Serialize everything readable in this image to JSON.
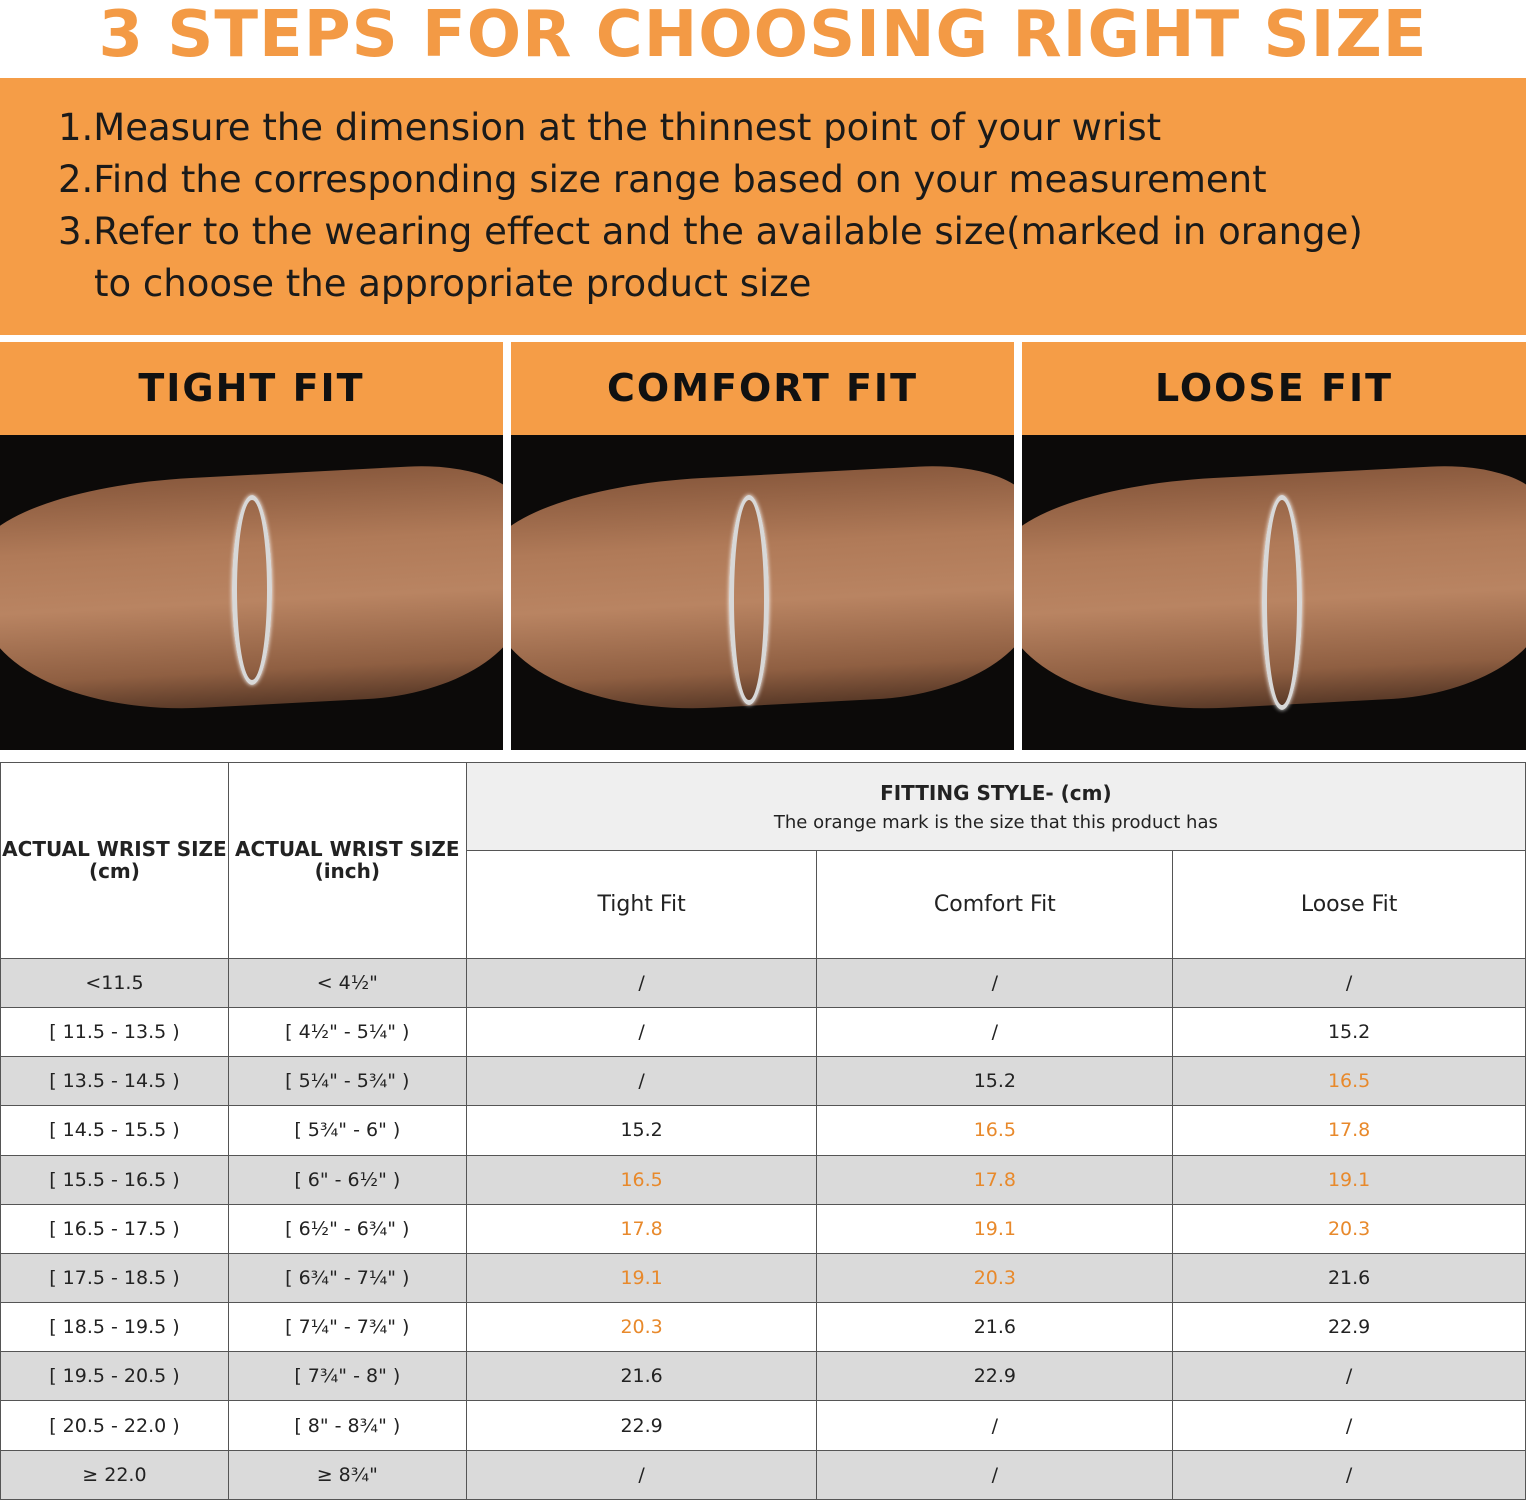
{
  "title": "3 STEPS FOR CHOOSING RIGHT SIZE",
  "steps": [
    "1.Measure the dimension at the thinnest point of your wrist",
    "2.Find the corresponding size range based on your measurement",
    "3.Refer to the wearing effect and the available size(marked in orange)",
    "to choose the appropriate product size"
  ],
  "fits": [
    "TIGHT FIT",
    "COMFORT FIT",
    "LOOSE FIT"
  ],
  "colors": {
    "orange": "#F59D47",
    "highlight": "#E8892B"
  },
  "table": {
    "col_cm": [
      "ACTUAL WRIST SIZE",
      "(cm)"
    ],
    "col_inch": [
      "ACTUAL WRIST SIZE",
      "(inch)"
    ],
    "fitting_title": "FITTING STYLE- (cm)",
    "fitting_note": "The orange mark is the size that this product has",
    "sub": [
      "Tight Fit",
      "Comfort Fit",
      "Loose Fit"
    ],
    "rows": [
      {
        "cm": "<11.5",
        "inch": "< 4½\"",
        "v": [
          "/",
          "/",
          "/"
        ],
        "o": [
          0,
          0,
          0
        ]
      },
      {
        "cm": "[ 11.5 - 13.5 )",
        "inch": "[ 4½\" - 5¼\" )",
        "v": [
          "/",
          "/",
          "15.2"
        ],
        "o": [
          0,
          0,
          0
        ]
      },
      {
        "cm": "[ 13.5 - 14.5 )",
        "inch": "[ 5¼\" - 5¾\" )",
        "v": [
          "/",
          "15.2",
          "16.5"
        ],
        "o": [
          0,
          0,
          1
        ]
      },
      {
        "cm": "[ 14.5 - 15.5 )",
        "inch": "[ 5¾\" - 6\" )",
        "v": [
          "15.2",
          "16.5",
          "17.8"
        ],
        "o": [
          0,
          1,
          1
        ]
      },
      {
        "cm": "[ 15.5 - 16.5 )",
        "inch": "[ 6\" - 6½\" )",
        "v": [
          "16.5",
          "17.8",
          "19.1"
        ],
        "o": [
          1,
          1,
          1
        ]
      },
      {
        "cm": "[ 16.5 - 17.5 )",
        "inch": "[ 6½\" - 6¾\" )",
        "v": [
          "17.8",
          "19.1",
          "20.3"
        ],
        "o": [
          1,
          1,
          1
        ]
      },
      {
        "cm": "[ 17.5 - 18.5 )",
        "inch": "[ 6¾\" - 7¼\" )",
        "v": [
          "19.1",
          "20.3",
          "21.6"
        ],
        "o": [
          1,
          1,
          0
        ]
      },
      {
        "cm": "[ 18.5 - 19.5 )",
        "inch": "[ 7¼\" - 7¾\" )",
        "v": [
          "20.3",
          "21.6",
          "22.9"
        ],
        "o": [
          1,
          0,
          0
        ]
      },
      {
        "cm": "[ 19.5 - 20.5 )",
        "inch": "[ 7¾\" - 8\" )",
        "v": [
          "21.6",
          "22.9",
          "/"
        ],
        "o": [
          0,
          0,
          0
        ]
      },
      {
        "cm": "[ 20.5 - 22.0 )",
        "inch": "[ 8\" - 8¾\" )",
        "v": [
          "22.9",
          "/",
          "/"
        ],
        "o": [
          0,
          0,
          0
        ]
      },
      {
        "cm": "≥ 22.0",
        "inch": "≥ 8¾\"",
        "v": [
          "/",
          "/",
          "/"
        ],
        "o": [
          0,
          0,
          0
        ]
      }
    ]
  }
}
